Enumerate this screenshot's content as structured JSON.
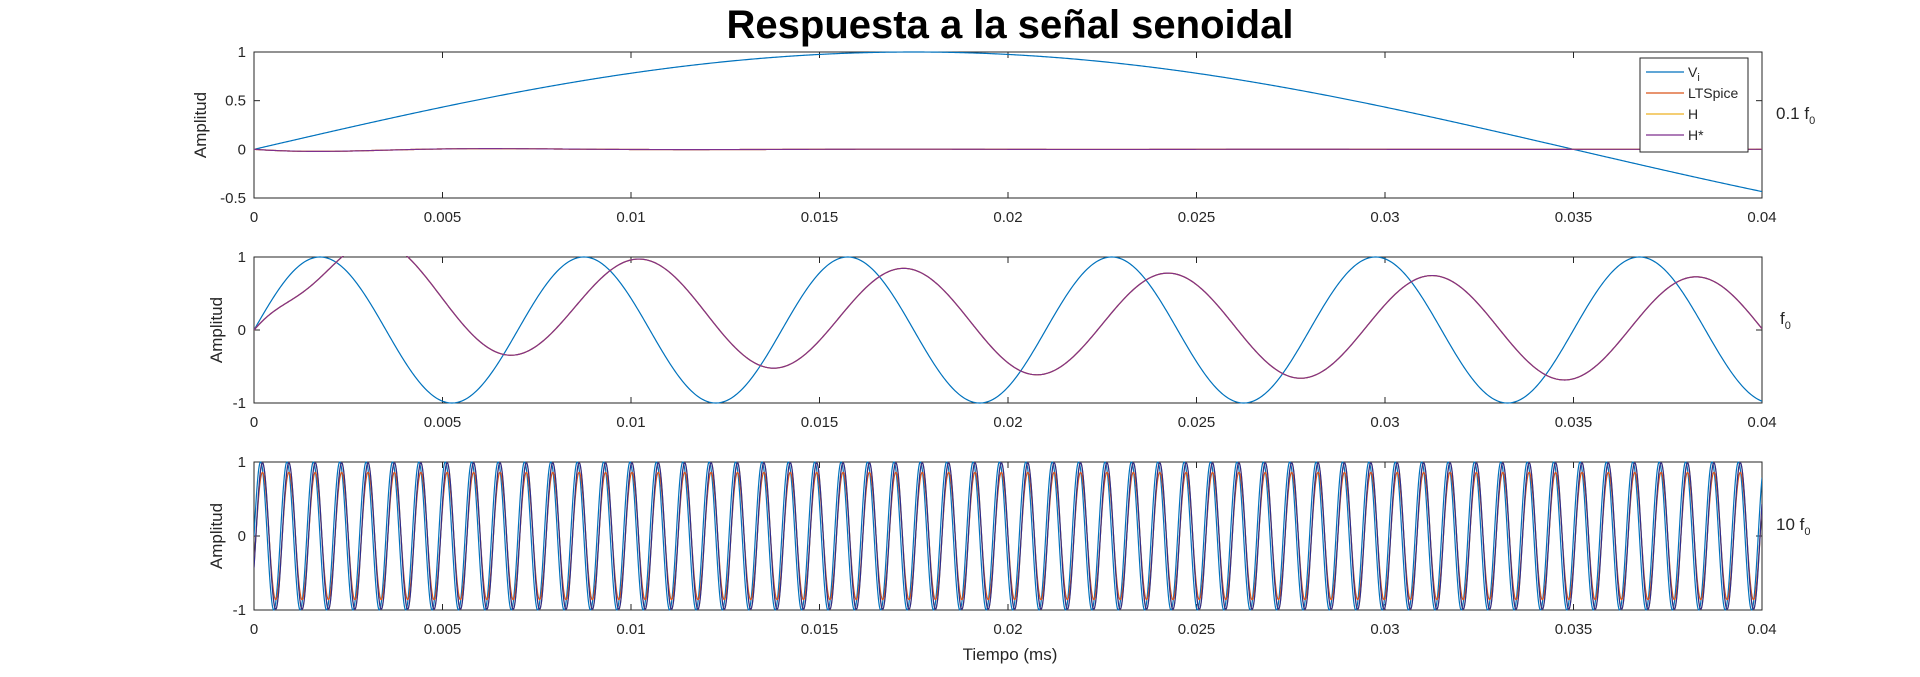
{
  "title": "Respuesta a la señal senoidal",
  "xlabel": "Tiempo (ms)",
  "legend": [
    {
      "label": "V",
      "sub": "i",
      "color": "#0072BD"
    },
    {
      "label": "LTSpice",
      "sub": "",
      "color": "#D95319"
    },
    {
      "label": "H",
      "sub": "",
      "color": "#EDB120"
    },
    {
      "label": "H*",
      "sub": "",
      "color": "#7E2F8E"
    }
  ],
  "chart_data": [
    {
      "type": "line",
      "side_label": {
        "text": "0.1 f",
        "sub": "0"
      },
      "ylabel": "Amplitud",
      "xlim": [
        0,
        0.04
      ],
      "ylim": [
        -0.5,
        1
      ],
      "xticks": [
        "0",
        "0.005",
        "0.01",
        "0.015",
        "0.02",
        "0.025",
        "0.03",
        "0.035",
        "0.04"
      ],
      "yticks": [
        "-0.5",
        "0",
        "0.5",
        "1"
      ],
      "legend_position": "top-right",
      "series": [
        {
          "name": "V",
          "description": "sin(2π·14.3·t), peak 1 at t≈0.0175, zero at t≈0.035, -0.43 at t=0.04"
        },
        {
          "name": "LTSpice",
          "description": "small damped response ≈ 0, min -0.03 at t≈0.002"
        },
        {
          "name": "H",
          "description": "overlaps H*"
        },
        {
          "name": "H*",
          "description": "small damped response ≈ 0, min -0.03 at t≈0.002"
        }
      ],
      "params": {
        "freq": 14.286,
        "out_amp": 0.0,
        "out_trans": 0.03,
        "trans_decay": 450,
        "trans_freq": 143
      }
    },
    {
      "type": "line",
      "side_label": {
        "text": "f",
        "sub": "0"
      },
      "ylabel": "Amplitud",
      "xlim": [
        0,
        0.04
      ],
      "ylim": [
        -1,
        1
      ],
      "xticks": [
        "0",
        "0.005",
        "0.01",
        "0.015",
        "0.02",
        "0.025",
        "0.03",
        "0.035",
        "0.04"
      ],
      "yticks": [
        "-1",
        "0",
        "1"
      ],
      "series": [
        {
          "name": "V",
          "description": "sin(2π·143·t), amplitude 1, peaks at t≈0.00175, 0.00875, 0.0158, 0.0228, 0.0298, 0.0368"
        },
        {
          "name": "LTSpice",
          "description": "lagging response, steady amplitude ≈0.71, first peak 0.18 at t≈0.0005"
        },
        {
          "name": "H",
          "description": "overlaps H*"
        },
        {
          "name": "H*",
          "description": "lagging response, steady amplitude ≈0.71"
        }
      ],
      "params": {
        "freq": 142.86,
        "out_amp": 0.71,
        "out_phase": -0.785,
        "out_trans": 0.5,
        "trans_decay": 45,
        "trans_freq": 143
      }
    },
    {
      "type": "line",
      "side_label": {
        "text": "10 f",
        "sub": "0"
      },
      "ylabel": "Amplitud",
      "xlim": [
        0,
        0.04
      ],
      "ylim": [
        -1,
        1
      ],
      "xticks": [
        "0",
        "0.005",
        "0.01",
        "0.015",
        "0.02",
        "0.025",
        "0.03",
        "0.035",
        "0.04"
      ],
      "yticks": [
        "-1",
        "0",
        "1"
      ],
      "series": [
        {
          "name": "V",
          "description": "sin(2π·1429·t), amplitude 1, ~57 cycles"
        },
        {
          "name": "LTSpice",
          "description": "response amplitude ≈0.85"
        },
        {
          "name": "H",
          "description": "response amplitude ≈1"
        },
        {
          "name": "H*",
          "description": "response amplitude ≈1, dark blue-purple"
        }
      ],
      "params": {
        "freq": 1428.6,
        "out_amp": 0.85,
        "out_phase": -0.35,
        "out_trans": 0,
        "trans_decay": 0,
        "trans_freq": 0
      }
    }
  ]
}
